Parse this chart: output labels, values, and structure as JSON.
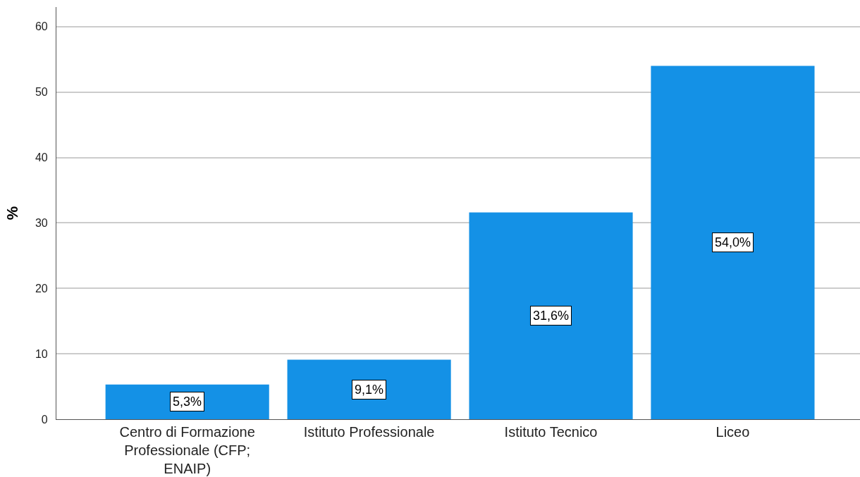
{
  "chart_data": {
    "type": "bar",
    "ylabel": "%",
    "categories": [
      "Centro di Formazione Professionale (CFP; ENAIP)",
      "Istituto Professionale",
      "Istituto Tecnico",
      "Liceo"
    ],
    "values": [
      5.3,
      9.1,
      31.6,
      54.0
    ],
    "color": "#1491e6",
    "value_labels": [
      "5,3%",
      "9,1%",
      "31,6%",
      "54,0%"
    ],
    "ylim": [
      0,
      63
    ],
    "yticks": [
      0,
      10,
      20,
      30,
      40,
      50,
      60
    ],
    "grid": "y"
  }
}
